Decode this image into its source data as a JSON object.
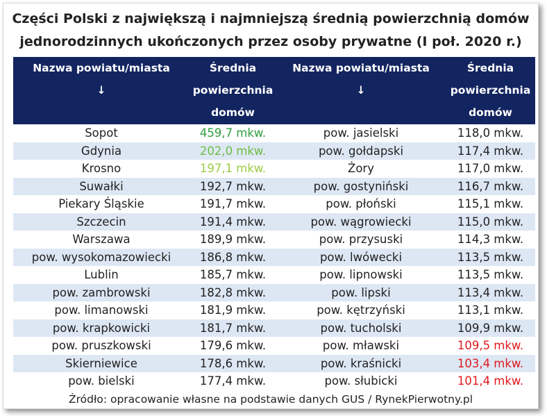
{
  "title_line1": "Części Polski z największą i najmniejszą średnią powierzchnią domów",
  "title_line2": "jednorodzinnych ukończonych przez osoby prywatne (I poł. 2020 r.)",
  "headers": {
    "col1": "Nazwa powiatu/miasta",
    "col2_l1": "Średnia",
    "col2_l2": "powierzchnia",
    "col2_l3": "domów",
    "col3": "Nazwa powiatu/miasta",
    "col4_l1": "Średnia",
    "col4_l2": "powierzchnia",
    "col4_l3": "domów",
    "arrow": "↓"
  },
  "colors": {
    "header_bg": "#132560",
    "stripe": "#dde7f4",
    "green_dark": "#2e9e3e",
    "green_mid": "#6dbb43",
    "green_light": "#9ccc44",
    "red": "#e0191d"
  },
  "rows": [
    {
      "name_high": "Sopot",
      "value_high": "459,7 mkw.",
      "color_high": "#2e9e3e",
      "name_low": "pow. jasielski",
      "value_low": "118,0 mkw.",
      "color_low": ""
    },
    {
      "name_high": "Gdynia",
      "value_high": "202,0 mkw.",
      "color_high": "#6dbb43",
      "name_low": "pow. gołdapski",
      "value_low": "117,4 mkw.",
      "color_low": ""
    },
    {
      "name_high": "Krosno",
      "value_high": "197,1 mkw.",
      "color_high": "#9ccc44",
      "name_low": "Żory",
      "value_low": "117,0 mkw.",
      "color_low": ""
    },
    {
      "name_high": "Suwałki",
      "value_high": "192,7 mkw.",
      "color_high": "",
      "name_low": "pow. gostyniński",
      "value_low": "116,7 mkw.",
      "color_low": ""
    },
    {
      "name_high": "Piekary Śląskie",
      "value_high": "191,7 mkw.",
      "color_high": "",
      "name_low": "pow. płoński",
      "value_low": "115,1 mkw.",
      "color_low": ""
    },
    {
      "name_high": "Szczecin",
      "value_high": "191,4 mkw.",
      "color_high": "",
      "name_low": "pow. wągrowiecki",
      "value_low": "115,0 mkw.",
      "color_low": ""
    },
    {
      "name_high": "Warszawa",
      "value_high": "189,9 mkw.",
      "color_high": "",
      "name_low": "pow. przysuski",
      "value_low": "114,3 mkw.",
      "color_low": ""
    },
    {
      "name_high": "pow. wysokomazowiecki",
      "value_high": "186,8 mkw.",
      "color_high": "",
      "name_low": "pow. lwówecki",
      "value_low": "113,5 mkw.",
      "color_low": ""
    },
    {
      "name_high": "Lublin",
      "value_high": "185,7 mkw.",
      "color_high": "",
      "name_low": "pow. lipnowski",
      "value_low": "113,5 mkw.",
      "color_low": ""
    },
    {
      "name_high": "pow. zambrowski",
      "value_high": "182,8 mkw.",
      "color_high": "",
      "name_low": "pow. lipski",
      "value_low": "113,4 mkw.",
      "color_low": ""
    },
    {
      "name_high": "pow. limanowski",
      "value_high": "181,9 mkw.",
      "color_high": "",
      "name_low": "pow. kętrzyński",
      "value_low": "113,1 mkw.",
      "color_low": ""
    },
    {
      "name_high": "pow. krapkowicki",
      "value_high": "181,7 mkw.",
      "color_high": "",
      "name_low": "pow. tucholski",
      "value_low": "109,9 mkw.",
      "color_low": ""
    },
    {
      "name_high": "pow. pruszkowski",
      "value_high": "179,6 mkw.",
      "color_high": "",
      "name_low": "pow. mławski",
      "value_low": "109,5 mkw.",
      "color_low": "#e0191d"
    },
    {
      "name_high": "Skierniewice",
      "value_high": "178,6 mkw.",
      "color_high": "",
      "name_low": "pow. kraśnicki",
      "value_low": "103,4 mkw.",
      "color_low": "#e0191d"
    },
    {
      "name_high": "pow. bielski",
      "value_high": "177,4 mkw.",
      "color_high": "",
      "name_low": "pow. słubicki",
      "value_low": "101,4 mkw.",
      "color_low": "#e0191d"
    }
  ],
  "source": "Źródło: opracowanie własne na podstawie danych GUS / RynekPierwotny.pl"
}
